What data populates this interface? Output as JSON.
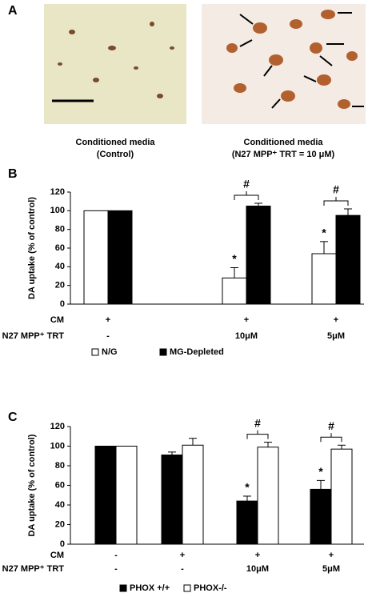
{
  "panel_a": {
    "label": "A",
    "captions": [
      [
        "Conditioned media",
        "(Control)"
      ],
      [
        "Conditioned media",
        "(N27 MPP⁺ TRT = 10 μM)"
      ]
    ]
  },
  "chart_data": [
    {
      "type": "bar",
      "label": "B",
      "ylabel": "DA uptake (% of control)",
      "ylim": [
        0,
        120
      ],
      "yticks": [
        0,
        20,
        40,
        60,
        80,
        100,
        120
      ],
      "row_labels": [
        "CM",
        "N27 MPP⁺ TRT"
      ],
      "rows": [
        [
          "+",
          "+",
          "+"
        ],
        [
          "-",
          "10μM",
          "5μM"
        ]
      ],
      "series": [
        {
          "name": "N/G",
          "color": "#ffffff",
          "values": [
            100,
            28,
            54
          ],
          "errors": [
            0,
            11,
            13
          ],
          "marks": [
            null,
            "*",
            "*"
          ]
        },
        {
          "name": "MG-Depleted",
          "color": "#000000",
          "values": [
            100,
            105,
            95
          ],
          "errors": [
            0,
            3,
            7
          ],
          "marks": [
            null,
            null,
            null
          ]
        }
      ],
      "brackets": [
        null,
        "#",
        "#"
      ]
    },
    {
      "type": "bar",
      "label": "C",
      "ylabel": "DA uptake (% of control)",
      "ylim": [
        0,
        120
      ],
      "yticks": [
        0,
        20,
        40,
        60,
        80,
        100,
        120
      ],
      "row_labels": [
        "CM",
        "N27 MPP⁺ TRT"
      ],
      "rows": [
        [
          "-",
          "+",
          "+",
          "+"
        ],
        [
          "-",
          "-",
          "10μM",
          "5μM"
        ]
      ],
      "series": [
        {
          "name": "PHOX +/+",
          "color": "#000000",
          "values": [
            100,
            91,
            44,
            56
          ],
          "errors": [
            0,
            3,
            5,
            9
          ],
          "marks": [
            null,
            null,
            "*",
            "*"
          ]
        },
        {
          "name": "PHOX-/-",
          "color": "#ffffff",
          "values": [
            100,
            101,
            99,
            97
          ],
          "errors": [
            0,
            7,
            5,
            4
          ],
          "marks": [
            null,
            null,
            null,
            null
          ]
        }
      ],
      "brackets": [
        null,
        null,
        "#",
        "#"
      ]
    }
  ]
}
